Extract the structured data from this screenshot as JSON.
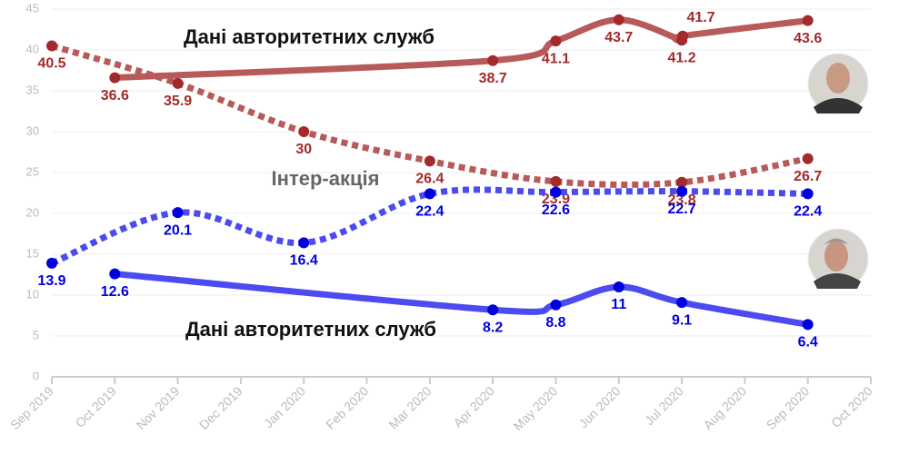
{
  "chart_data": {
    "type": "line",
    "categories": [
      "Sep 2019",
      "Oct 2019",
      "Nov 2019",
      "Dec 2019",
      "Jan 2020",
      "Feb 2020",
      "Mar 2020",
      "Apr 2020",
      "May 2020",
      "Jun 2020",
      "Jul 2020",
      "Aug 2020",
      "Sep 2020",
      "Oct 2020"
    ],
    "ylim": [
      0,
      45
    ],
    "yticks": [
      0,
      5,
      10,
      15,
      20,
      25,
      30,
      35,
      40,
      45
    ],
    "annotations": [
      "Дані авторитетних служб",
      "Інтер-акція",
      "Дані авторитетних служб"
    ],
    "series": [
      {
        "color": "#b85a5a",
        "dot_color": "#a32a2a",
        "style": "solid",
        "x": [
          "Oct 2019",
          "Apr 2020",
          "May 2020",
          "Jun 2020",
          "Jul 2020",
          "Jul 2020",
          "Sep 2020"
        ],
        "values": [
          36.6,
          38.7,
          41.1,
          43.7,
          41.2,
          41.7,
          43.6
        ]
      },
      {
        "color": "#b85a5a",
        "dot_color": "#a32a2a",
        "style": "dotted",
        "x": [
          "Sep 2019",
          "Nov 2019",
          "Jan 2020",
          "Mar 2020",
          "May 2020",
          "Jul 2020",
          "Sep 2020"
        ],
        "values": [
          40.5,
          35.9,
          30,
          26.4,
          23.9,
          23.8,
          26.7
        ]
      },
      {
        "color": "#4b4bf0",
        "dot_color": "#0000dd",
        "style": "dotted",
        "x": [
          "Sep 2019",
          "Nov 2019",
          "Jan 2020",
          "Mar 2020",
          "May 2020",
          "Jul 2020",
          "Sep 2020"
        ],
        "values": [
          13.9,
          20.1,
          16.4,
          22.4,
          22.6,
          22.7,
          22.4
        ]
      },
      {
        "color": "#4b4bf0",
        "dot_color": "#0000dd",
        "style": "solid",
        "x": [
          "Oct 2019",
          "Apr 2020",
          "May 2020",
          "Jun 2020",
          "Jul 2020",
          "Sep 2020"
        ],
        "values": [
          12.6,
          8.2,
          8.8,
          11,
          9.1,
          6.4
        ]
      }
    ]
  }
}
